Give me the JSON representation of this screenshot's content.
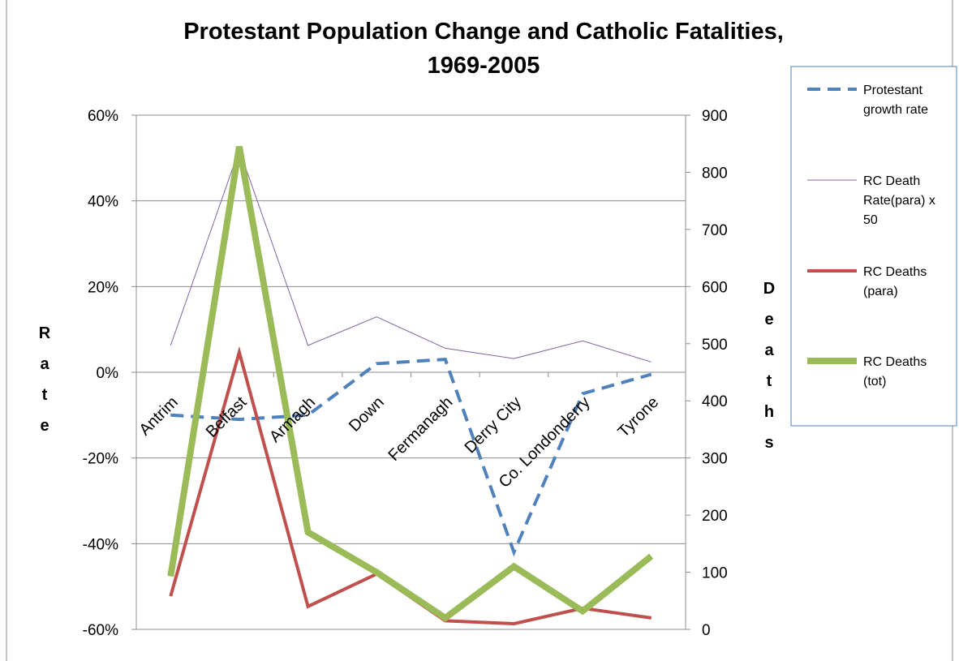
{
  "chart_data": {
    "type": "line",
    "title": "Protestant Population Change and Catholic Fatalities,",
    "title_line2": "1969-2005",
    "ylabel_left": "Rate",
    "ylabel_right": "Deaths",
    "categories": [
      "Antrim",
      "Belfast",
      "Armagh",
      "Down",
      "Fermanagh",
      "Derry City",
      "Co. Londonderry",
      "Tyrone"
    ],
    "ylim_left": [
      -0.6,
      0.6
    ],
    "yticks_left": [
      "60%",
      "40%",
      "20%",
      "0%",
      "-20%",
      "-40%",
      "-60%"
    ],
    "ylim_right": [
      0,
      900
    ],
    "yticks_right": [
      "900",
      "800",
      "700",
      "600",
      "500",
      "400",
      "300",
      "200",
      "100",
      "0"
    ],
    "grid": true,
    "legend_position": "right",
    "series": [
      {
        "name": "Protestant growth rate",
        "axis": "left",
        "color": "#4f81bd",
        "style": "dashed",
        "values": [
          -0.1,
          -0.11,
          -0.1,
          0.02,
          0.03,
          -0.42,
          -0.05,
          -0.005
        ]
      },
      {
        "name": "RC Death Rate(para) x 50",
        "axis": "right",
        "color": "#8064a2",
        "style": "thin",
        "values": [
          497,
          840,
          497,
          547,
          492,
          474,
          505,
          468
        ]
      },
      {
        "name": "RC Deaths (para)",
        "axis": "right",
        "color": "#c0504d",
        "style": "solid",
        "values": [
          58,
          485,
          40,
          97,
          15,
          10,
          37,
          20
        ]
      },
      {
        "name": "RC Deaths (tot)",
        "axis": "right",
        "color": "#9bbb59",
        "style": "thick",
        "values": [
          93,
          845,
          170,
          100,
          20,
          110,
          32,
          128
        ]
      }
    ],
    "legend_labels": [
      [
        "Protestant",
        "growth rate"
      ],
      [
        "RC Death",
        "Rate(para) x",
        "50"
      ],
      [
        "RC Deaths",
        "(para)"
      ],
      [
        "RC Deaths",
        "(tot)"
      ]
    ]
  }
}
